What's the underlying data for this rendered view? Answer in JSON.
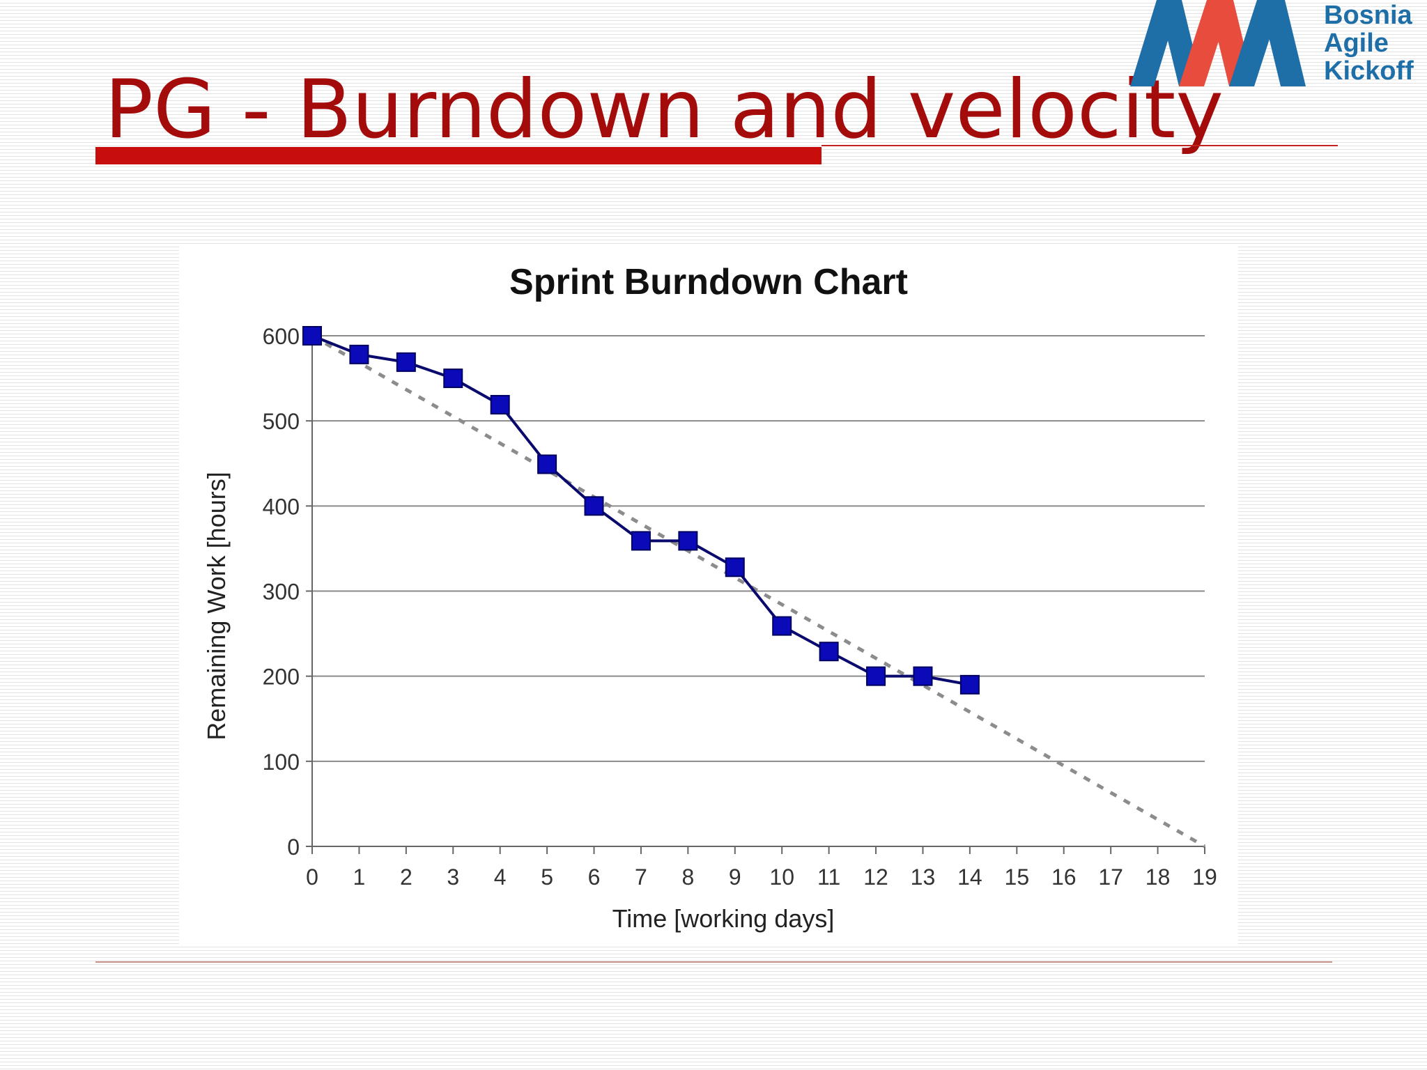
{
  "slide": {
    "title": "PG - Burndown and velocity"
  },
  "logo": {
    "lines": [
      "Bosnia",
      "Agile",
      "Kickoff"
    ],
    "colors": {
      "blue": "#1e6fa8",
      "red": "#e84c3d"
    }
  },
  "colors": {
    "title": "#a40c0c",
    "accent_rule": "#c80d0d",
    "actual_line": "#0a0a6e",
    "actual_marker": "#0a0ab8",
    "ideal_line": "#8c8c8c",
    "grid": "#8a8a8a"
  },
  "chart_data": {
    "type": "line",
    "title": "Sprint Burndown Chart",
    "xlabel": "Time [working days]",
    "ylabel": "Remaining Work [hours]",
    "xlim": [
      0,
      19
    ],
    "ylim": [
      0,
      600
    ],
    "x_ticks": [
      "0",
      "1",
      "2",
      "3",
      "4",
      "5",
      "6",
      "7",
      "8",
      "9",
      "10",
      "11",
      "12",
      "13",
      "14",
      "15",
      "16",
      "17",
      "18",
      "19"
    ],
    "y_ticks": [
      "0",
      "100",
      "200",
      "300",
      "400",
      "500",
      "600"
    ],
    "grid": "horizontal",
    "series": [
      {
        "style": "solid-square-markers",
        "x": [
          0,
          1,
          2,
          3,
          4,
          5,
          6,
          7,
          8,
          9,
          10,
          11,
          12,
          13,
          14
        ],
        "values": [
          600,
          578,
          569,
          550,
          519,
          449,
          400,
          359,
          359,
          328,
          259,
          229,
          200,
          200,
          190
        ]
      },
      {
        "style": "dashed-ideal",
        "x": [
          0,
          19
        ],
        "values": [
          600,
          0
        ]
      }
    ]
  }
}
